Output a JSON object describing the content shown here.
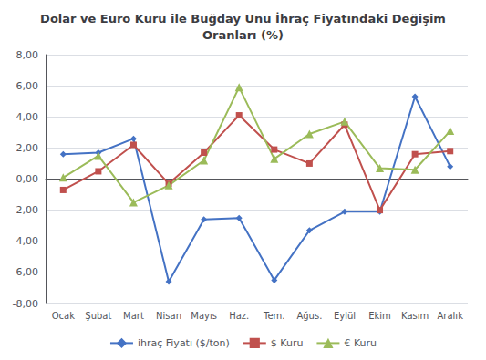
{
  "chart_data": {
    "type": "line",
    "title": "Dolar ve Euro Kuru ile Buğday Unu İhraç Fiyatındaki Değişim\nOranları (%)",
    "categories": [
      "Ocak",
      "Şubat",
      "Mart",
      "Nisan",
      "Mayıs",
      "Haz.",
      "Tem.",
      "Ağus.",
      "Eylül",
      "Ekim",
      "Kasım",
      "Aralık"
    ],
    "series": [
      {
        "name": "ihraç Fiyatı ($/ton)",
        "color": "#4472C4",
        "marker": "diamond",
        "values": [
          1.6,
          1.7,
          2.6,
          -6.6,
          -2.6,
          -2.5,
          -6.5,
          -3.3,
          -2.1,
          -2.1,
          5.3,
          0.8
        ]
      },
      {
        "name": "$ Kuru",
        "color": "#C0504D",
        "marker": "square",
        "values": [
          -0.7,
          0.5,
          2.2,
          -0.3,
          1.7,
          4.1,
          1.9,
          1.0,
          3.5,
          -2.0,
          1.6,
          1.8
        ]
      },
      {
        "name": "€ Kuru",
        "color": "#9BBB59",
        "marker": "triangle",
        "values": [
          0.1,
          1.5,
          -1.5,
          -0.4,
          1.2,
          5.9,
          1.3,
          2.9,
          3.7,
          0.7,
          0.6,
          3.1
        ]
      }
    ],
    "ylim": [
      -8.0,
      8.0
    ],
    "yticks": [
      {
        "value": -8.0,
        "label": "-8,00"
      },
      {
        "value": -6.0,
        "label": "-6,00"
      },
      {
        "value": -4.0,
        "label": "-4,00"
      },
      {
        "value": -2.0,
        "label": "-2,00"
      },
      {
        "value": 0.0,
        "label": "0,00"
      },
      {
        "value": 2.0,
        "label": "2,00"
      },
      {
        "value": 4.0,
        "label": "4,00"
      },
      {
        "value": 6.0,
        "label": "6,00"
      },
      {
        "value": 8.0,
        "label": "8,00"
      }
    ],
    "grid": true,
    "legend": "bottom"
  }
}
